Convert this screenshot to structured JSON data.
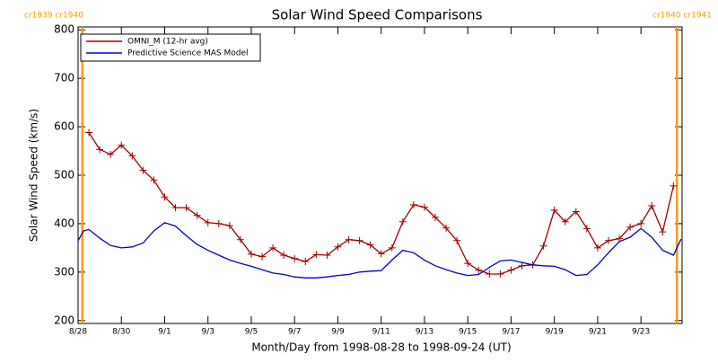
{
  "chart_data": {
    "type": "line",
    "title": "Solar Wind Speed Comparisons",
    "xlabel": "Month/Day from 1998-08-28 to 1998-09-24 (UT)",
    "ylabel": "Solar Wind Speed (km/s)",
    "xlim": [
      0,
      27.9
    ],
    "ylim": [
      194,
      806
    ],
    "xticks": [
      {
        "value": 0,
        "label": "8/28"
      },
      {
        "value": 2,
        "label": "8/30"
      },
      {
        "value": 4,
        "label": "9/1"
      },
      {
        "value": 6,
        "label": "9/3"
      },
      {
        "value": 8,
        "label": "9/5"
      },
      {
        "value": 10,
        "label": "9/7"
      },
      {
        "value": 12,
        "label": "9/9"
      },
      {
        "value": 14,
        "label": "9/11"
      },
      {
        "value": 16,
        "label": "9/13"
      },
      {
        "value": 18,
        "label": "9/15"
      },
      {
        "value": 20,
        "label": "9/17"
      },
      {
        "value": 22,
        "label": "9/19"
      },
      {
        "value": 24,
        "label": "9/21"
      },
      {
        "value": 26,
        "label": "9/23"
      }
    ],
    "yticks": [
      200,
      300,
      400,
      500,
      600,
      700,
      800
    ],
    "legend": "upper left",
    "boundaries": [
      {
        "x": 0.2,
        "label": "cr1939 cr1940",
        "color": "#ff9900"
      },
      {
        "x": 27.66,
        "label": "cr1940 cr1941",
        "color": "#ff9900"
      }
    ],
    "series": [
      {
        "name": "OMNI_M (12-hr avg)",
        "color": "#a00000",
        "markers": true,
        "x": [
          0.5,
          1,
          1.5,
          2,
          2.5,
          3,
          3.5,
          4,
          4.5,
          5,
          5.5,
          6,
          6.5,
          7,
          7.5,
          8,
          8.5,
          9,
          9.5,
          10,
          10.5,
          11,
          11.5,
          12,
          12.5,
          13,
          13.5,
          14,
          14.5,
          15,
          15.5,
          16,
          16.5,
          17,
          17.5,
          18,
          18.5,
          19,
          19.5,
          20,
          20.5,
          21,
          21.5,
          22,
          22.5,
          23,
          23.5,
          24,
          24.5,
          25,
          25.5,
          26,
          26.5,
          27,
          27.5
        ],
        "values": [
          588,
          553,
          543,
          562,
          540,
          510,
          490,
          455,
          433,
          433,
          417,
          402,
          400,
          396,
          367,
          337,
          332,
          350,
          335,
          328,
          322,
          336,
          335,
          352,
          367,
          365,
          356,
          338,
          350,
          404,
          439,
          434,
          413,
          391,
          365,
          318,
          304,
          296,
          296,
          304,
          313,
          315,
          354,
          428,
          404,
          425,
          390,
          350,
          365,
          369,
          393,
          400,
          437,
          383,
          478
        ]
      },
      {
        "name": "Predictive Science MAS Model",
        "color": "#0000cc",
        "markers": false,
        "x": [
          0,
          0.25,
          0.5,
          1,
          1.5,
          2,
          2.5,
          3,
          3.5,
          4,
          4.5,
          5,
          5.5,
          6,
          6.5,
          7,
          7.5,
          8,
          8.5,
          9,
          9.5,
          10,
          10.5,
          11,
          11.5,
          12,
          12.5,
          13,
          13.5,
          14,
          14.5,
          15,
          15.5,
          16,
          16.5,
          17,
          17.5,
          18,
          18.5,
          19,
          19.5,
          20,
          20.5,
          21,
          21.5,
          22,
          22.5,
          23,
          23.5,
          24,
          24.5,
          25,
          25.5,
          26,
          26.5,
          27,
          27.5,
          27.85
        ],
        "values": [
          365,
          385,
          388,
          370,
          355,
          350,
          352,
          360,
          385,
          402,
          395,
          375,
          357,
          345,
          335,
          325,
          318,
          312,
          305,
          298,
          295,
          290,
          288,
          288,
          290,
          293,
          295,
          300,
          302,
          303,
          325,
          345,
          340,
          325,
          313,
          305,
          298,
          293,
          295,
          310,
          323,
          325,
          320,
          315,
          313,
          312,
          305,
          293,
          295,
          315,
          340,
          363,
          372,
          390,
          372,
          345,
          335,
          368
        ]
      }
    ]
  }
}
